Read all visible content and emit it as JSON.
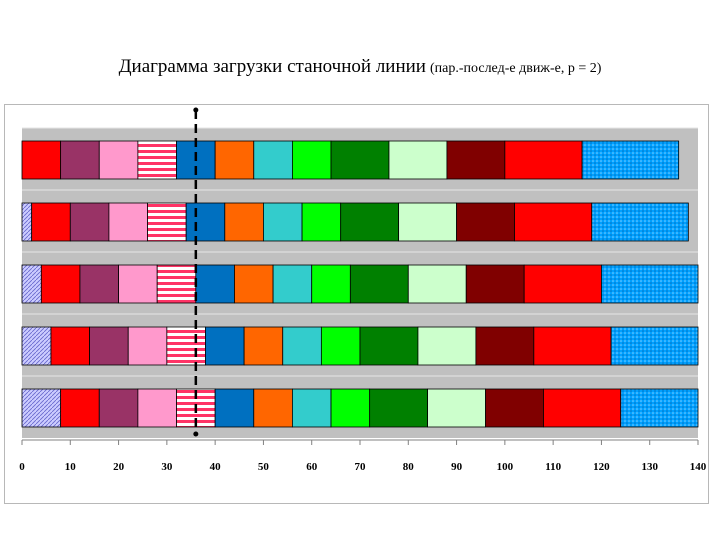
{
  "title": {
    "main": "Диаграмма загрузки станочной линии",
    "sub": "(пар.-послед-е движ-е, р = 2)"
  },
  "chart_data": {
    "type": "bar",
    "orientation": "horizontal",
    "stacked": true,
    "title": "Диаграмма загрузки станочной линии (пар.-послед-е движ-е, р = 2)",
    "xlim": [
      0,
      140
    ],
    "x_ticks": [
      0,
      10,
      20,
      30,
      40,
      50,
      60,
      70,
      80,
      90,
      100,
      110,
      120,
      130,
      140
    ],
    "grid": false,
    "legend": "none",
    "reference_line": {
      "x": 36,
      "style": "dashed"
    },
    "segment_colors": [
      "#FF0000",
      "#993366",
      "#FF99CC",
      "#FF3366",
      "#0070C0",
      "#FF6600",
      "#33CCCC",
      "#00FF00",
      "#008000",
      "#CCFFCC",
      "#800000",
      "#FF0000",
      "#0099FF"
    ],
    "rows": [
      {
        "offset": 0,
        "durations": [
          8,
          8,
          8,
          8,
          8,
          8,
          8,
          8,
          12,
          12,
          12,
          16,
          20
        ]
      },
      {
        "offset": 2,
        "durations": [
          8,
          8,
          8,
          8,
          8,
          8,
          8,
          8,
          12,
          12,
          12,
          16,
          20
        ]
      },
      {
        "offset": 4,
        "durations": [
          8,
          8,
          8,
          8,
          8,
          8,
          8,
          8,
          12,
          12,
          12,
          16,
          20
        ]
      },
      {
        "offset": 6,
        "durations": [
          8,
          8,
          8,
          8,
          8,
          8,
          8,
          8,
          12,
          12,
          12,
          16,
          20
        ]
      },
      {
        "offset": 8,
        "durations": [
          8,
          8,
          8,
          8,
          8,
          8,
          8,
          8,
          12,
          12,
          12,
          16,
          20
        ]
      }
    ]
  }
}
